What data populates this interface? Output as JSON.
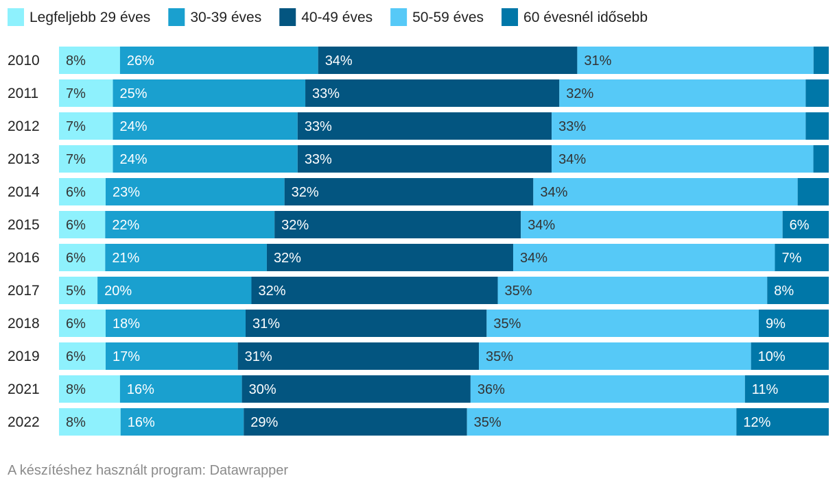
{
  "chart_data": {
    "type": "bar",
    "orientation": "horizontal",
    "stacked": true,
    "normalized": true,
    "categories": [
      "2010",
      "2011",
      "2012",
      "2013",
      "2014",
      "2015",
      "2016",
      "2017",
      "2018",
      "2019",
      "2021",
      "2022"
    ],
    "series": [
      {
        "name": "Legfeljebb 29 éves",
        "color": "#8ef1fd",
        "values": [
          8,
          7,
          7,
          7,
          6,
          6,
          6,
          5,
          6,
          6,
          8,
          8
        ],
        "labels": [
          "8%",
          "7%",
          "7%",
          "7%",
          "6%",
          "6%",
          "6%",
          "5%",
          "6%",
          "6%",
          "8%",
          "8%"
        ]
      },
      {
        "name": "30-39 éves",
        "color": "#1aa0cf",
        "values": [
          26,
          25,
          24,
          24,
          23,
          22,
          21,
          20,
          18,
          17,
          16,
          16
        ],
        "labels": [
          "26%",
          "25%",
          "24%",
          "24%",
          "23%",
          "22%",
          "21%",
          "20%",
          "18%",
          "17%",
          "16%",
          "16%"
        ]
      },
      {
        "name": "40-49 éves",
        "color": "#035580",
        "values": [
          34,
          33,
          33,
          33,
          32,
          32,
          32,
          32,
          31,
          31,
          30,
          29
        ],
        "labels": [
          "34%",
          "33%",
          "33%",
          "33%",
          "32%",
          "32%",
          "32%",
          "32%",
          "31%",
          "31%",
          "30%",
          "29%"
        ]
      },
      {
        "name": "50-59 éves",
        "color": "#56c9f7",
        "values": [
          31,
          32,
          33,
          34,
          34,
          34,
          34,
          35,
          35,
          35,
          36,
          35
        ],
        "labels": [
          "31%",
          "32%",
          "33%",
          "34%",
          "34%",
          "34%",
          "34%",
          "35%",
          "35%",
          "35%",
          "36%",
          "35%"
        ]
      },
      {
        "name": "60 évesnél idősebb",
        "color": "#0077a8",
        "values": [
          2,
          3,
          3,
          2,
          4,
          6,
          7,
          8,
          9,
          10,
          11,
          12
        ],
        "labels": [
          "",
          "",
          "",
          "",
          "",
          "6%",
          "7%",
          "8%",
          "9%",
          "10%",
          "11%",
          "12%"
        ]
      }
    ],
    "xlim": [
      0,
      100
    ],
    "legend_position": "top",
    "grid": false,
    "title": "",
    "xlabel": "",
    "ylabel": ""
  },
  "footer": {
    "source_text": "A készítéshez használt program: Datawrapper"
  }
}
